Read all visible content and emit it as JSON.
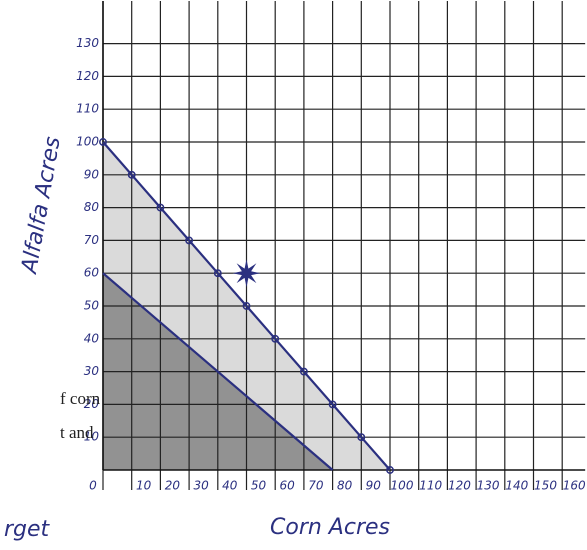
{
  "chart_data": {
    "type": "line",
    "x_label": "Corn Acres",
    "y_label": "Alfalfa Acres",
    "xlim": [
      0,
      168
    ],
    "ylim": [
      0,
      143
    ],
    "xticks": [
      0,
      10,
      20,
      30,
      40,
      50,
      60,
      70,
      80,
      90,
      100,
      110,
      120,
      130,
      140,
      150,
      160
    ],
    "yticks": [
      10,
      20,
      30,
      40,
      50,
      60,
      70,
      80,
      90,
      100,
      110,
      120,
      130
    ],
    "grid": true,
    "grid_color": "#222",
    "series": [
      {
        "color": "#2b3080",
        "fill": "#d6d6d6",
        "marker": "dot",
        "x": [
          0,
          10,
          20,
          30,
          40,
          50,
          60,
          70,
          80,
          90,
          100
        ],
        "values": [
          100,
          90,
          80,
          70,
          60,
          50,
          40,
          30,
          20,
          10,
          0
        ]
      },
      {
        "color": "#2b3080",
        "fill": "#8a8a8a",
        "marker": "none",
        "x": [
          0,
          80
        ],
        "values": [
          60,
          0
        ]
      },
      {
        "color": "#2b3080",
        "marker": "star",
        "line": false,
        "x": [
          50
        ],
        "values": [
          60
        ]
      }
    ],
    "annotations": [
      "f corn",
      "t and",
      "rget"
    ]
  }
}
